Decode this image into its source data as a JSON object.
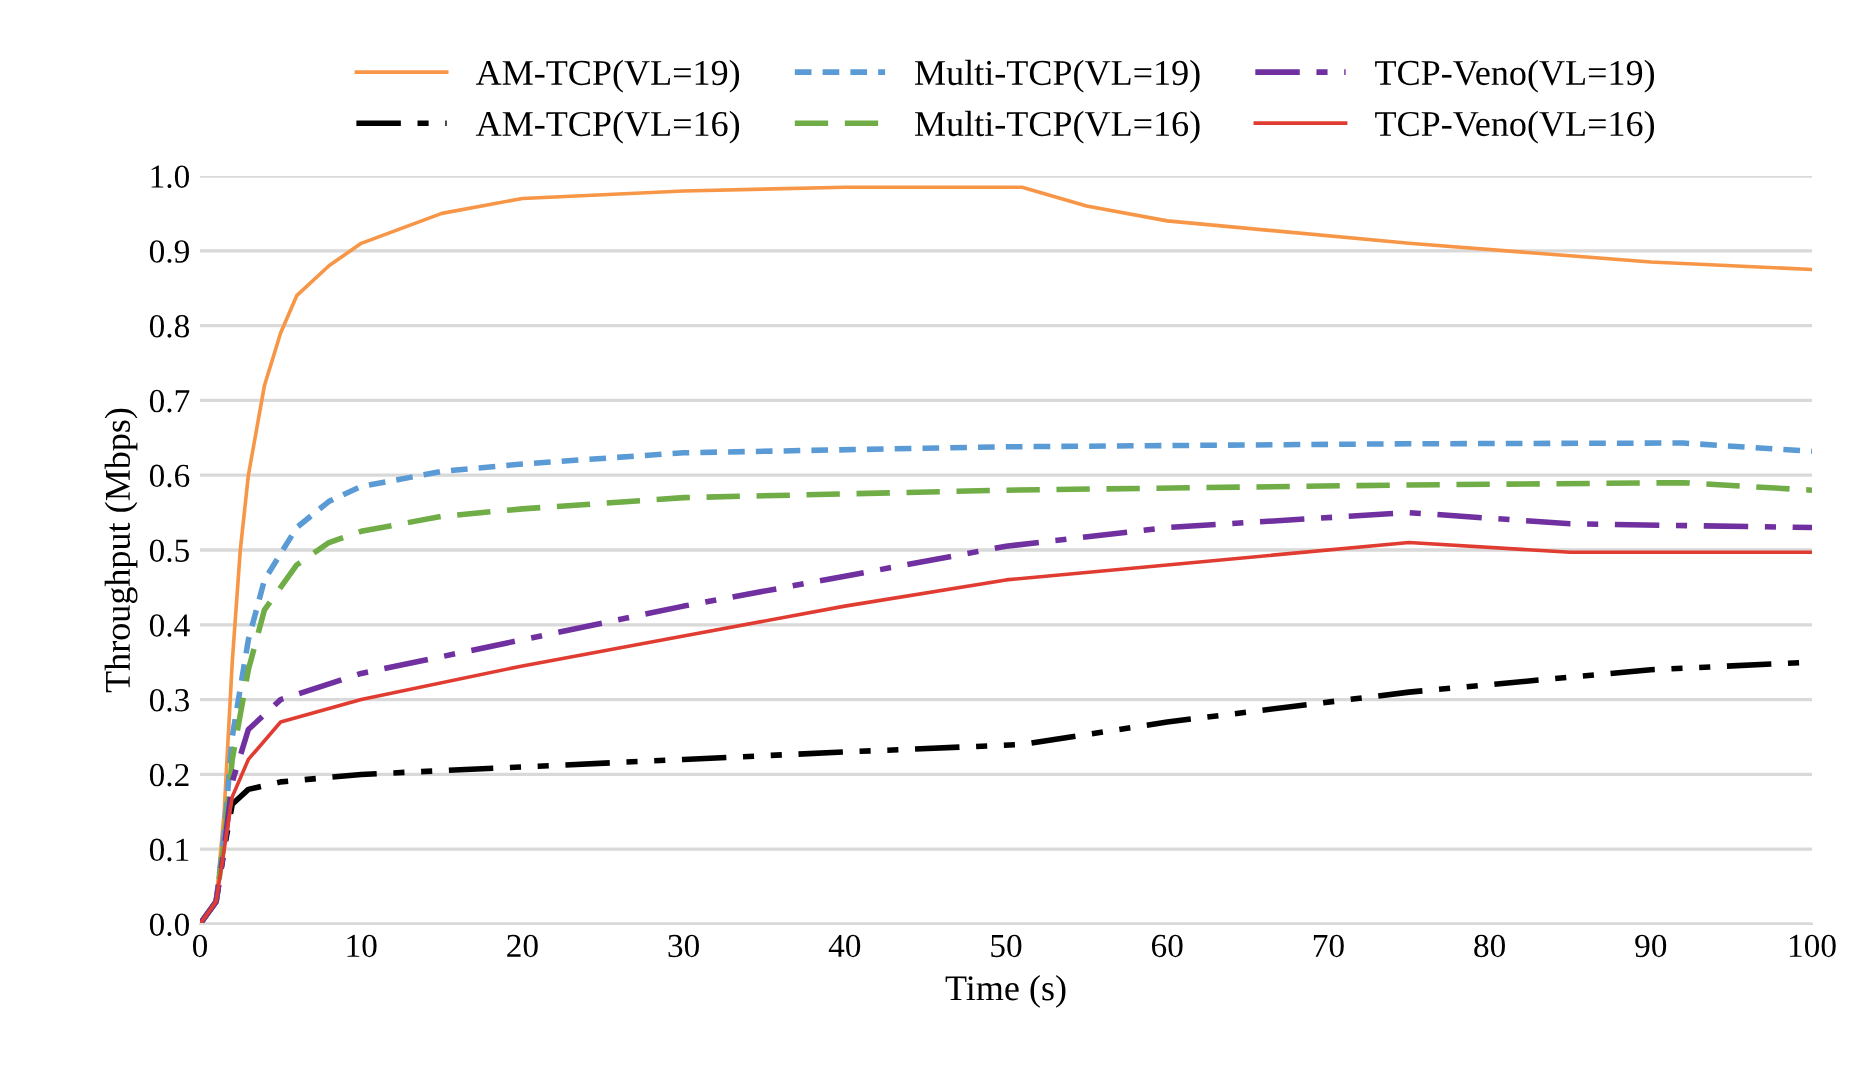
{
  "chart_data": {
    "type": "line",
    "xlabel": "Time (s)",
    "ylabel": "Throughput (Mbps)",
    "xlim": [
      0,
      100
    ],
    "ylim": [
      0,
      1.0
    ],
    "xticks": [
      0,
      10,
      20,
      30,
      40,
      50,
      60,
      70,
      80,
      90,
      100
    ],
    "yticks": [
      {
        "value": 0,
        "label": "0.0"
      },
      {
        "value": 0.1,
        "label": "0.1"
      },
      {
        "value": 0.2,
        "label": "0.2"
      },
      {
        "value": 0.3,
        "label": "0.3"
      },
      {
        "value": 0.4,
        "label": "0.4"
      },
      {
        "value": 0.5,
        "label": "0.5"
      },
      {
        "value": 0.6,
        "label": "0.6"
      },
      {
        "value": 0.7,
        "label": "0.7"
      },
      {
        "value": 0.8,
        "label": "0.8"
      },
      {
        "value": 0.9,
        "label": "0.9"
      },
      {
        "value": 1.0,
        "label": "1.0"
      }
    ],
    "grid": "y",
    "legend": "top",
    "marker": "none",
    "series": [
      {
        "name": "AM-TCP(VL=19)",
        "color": "#f79646",
        "line_style": "solid",
        "x": [
          0,
          1,
          1.5,
          2,
          2.5,
          3,
          4,
          5,
          6,
          8,
          10,
          15,
          20,
          30,
          40,
          51,
          55,
          60,
          75,
          90,
          100
        ],
        "values": [
          0,
          0.03,
          0.15,
          0.35,
          0.5,
          0.6,
          0.72,
          0.79,
          0.84,
          0.88,
          0.91,
          0.95,
          0.97,
          0.98,
          0.985,
          0.985,
          0.96,
          0.94,
          0.91,
          0.885,
          0.875
        ]
      },
      {
        "name": "AM-TCP(VL=16)",
        "color": "#000000",
        "line_style": "dashdotdot",
        "x": [
          0,
          1,
          1.5,
          2,
          3,
          5,
          10,
          20,
          30,
          40,
          51,
          60,
          75,
          90,
          100
        ],
        "values": [
          0,
          0.03,
          0.1,
          0.16,
          0.18,
          0.19,
          0.2,
          0.21,
          0.22,
          0.23,
          0.24,
          0.27,
          0.31,
          0.34,
          0.35
        ]
      },
      {
        "name": "Multi-TCP(VL=19)",
        "color": "#5b9bd5",
        "line_style": "dotted",
        "x": [
          0,
          1,
          1.5,
          2,
          3,
          4,
          6,
          8,
          10,
          15,
          20,
          30,
          50,
          75,
          92,
          100
        ],
        "values": [
          0,
          0.03,
          0.12,
          0.25,
          0.38,
          0.46,
          0.53,
          0.565,
          0.585,
          0.605,
          0.615,
          0.63,
          0.638,
          0.642,
          0.643,
          0.632
        ]
      },
      {
        "name": "Multi-TCP(VL=16)",
        "color": "#70ad47",
        "line_style": "dashed",
        "x": [
          0,
          1,
          1.5,
          2,
          3,
          4,
          6,
          8,
          10,
          15,
          20,
          30,
          50,
          75,
          92,
          100
        ],
        "values": [
          0,
          0.03,
          0.11,
          0.22,
          0.34,
          0.42,
          0.48,
          0.51,
          0.525,
          0.545,
          0.555,
          0.57,
          0.58,
          0.587,
          0.59,
          0.58
        ]
      },
      {
        "name": "TCP-Veno(VL=19)",
        "color": "#7030a0",
        "line_style": "dashdot",
        "x": [
          0,
          1,
          1.5,
          2,
          3,
          5,
          10,
          20,
          30,
          40,
          50,
          60,
          75,
          85,
          100
        ],
        "values": [
          0,
          0.03,
          0.1,
          0.19,
          0.26,
          0.3,
          0.335,
          0.38,
          0.425,
          0.465,
          0.505,
          0.53,
          0.55,
          0.535,
          0.53
        ]
      },
      {
        "name": "TCP-Veno(VL=16)",
        "color": "#e03c31",
        "line_style": "solid",
        "x": [
          0,
          1,
          1.5,
          2,
          3,
          5,
          10,
          20,
          30,
          40,
          50,
          60,
          75,
          85,
          100
        ],
        "values": [
          0,
          0.03,
          0.1,
          0.17,
          0.22,
          0.27,
          0.3,
          0.345,
          0.385,
          0.425,
          0.46,
          0.48,
          0.51,
          0.497,
          0.497
        ]
      }
    ]
  }
}
